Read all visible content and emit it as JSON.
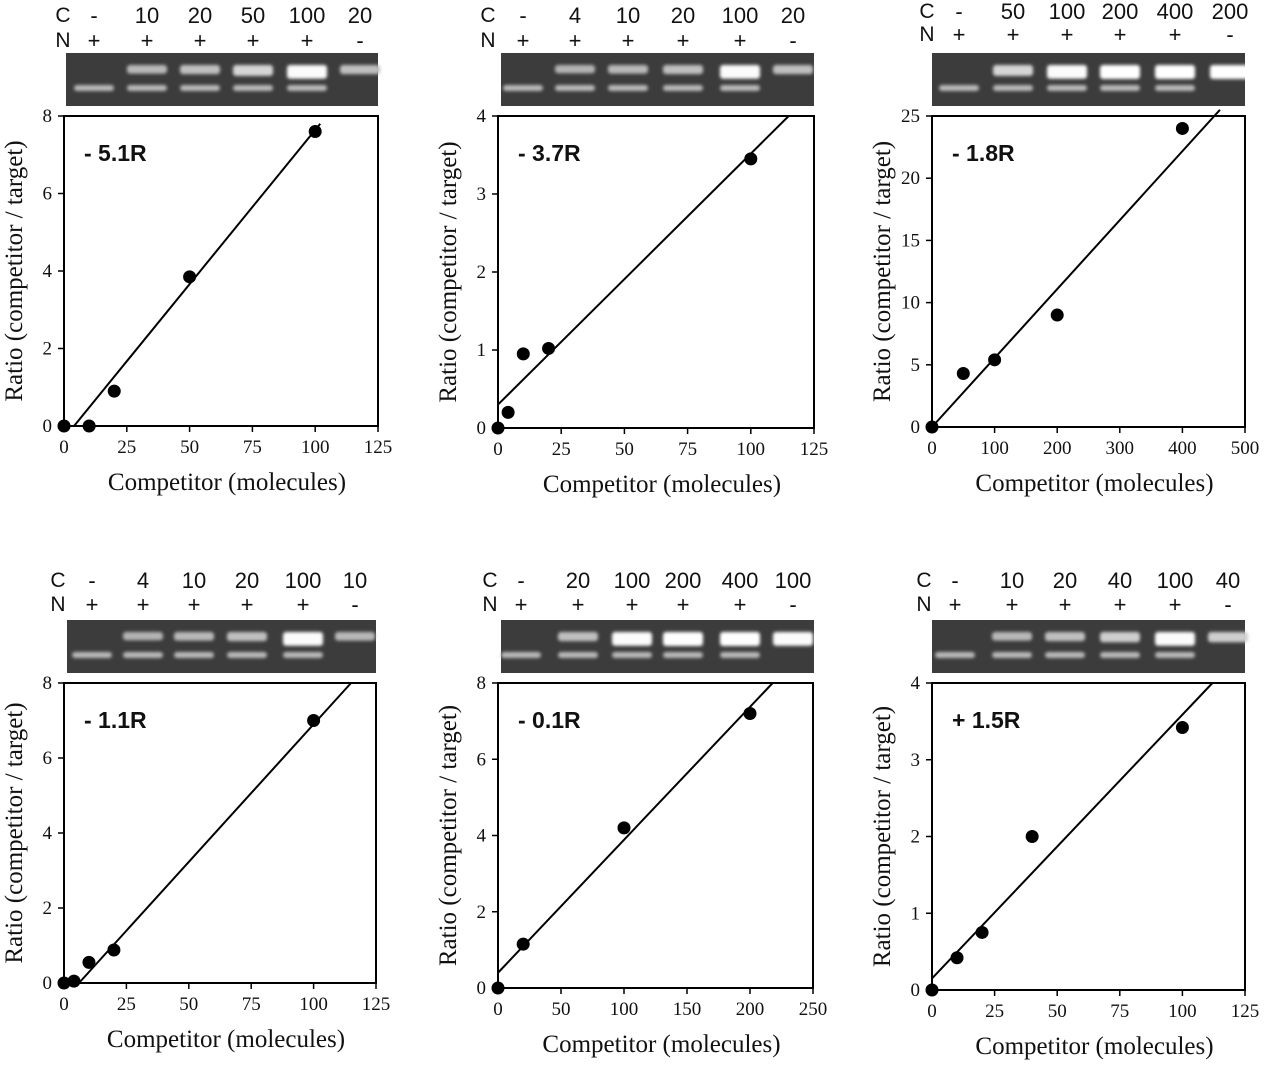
{
  "row_keys": {
    "competitor": "C",
    "target": "N"
  },
  "chart_data": [
    {
      "type": "scatter",
      "annotation": "- 5.1R",
      "gel_lanes": {
        "c": [
          "-",
          "10",
          "20",
          "50",
          "100",
          "20"
        ],
        "n": [
          "+",
          "+",
          "+",
          "+",
          "+",
          "-"
        ]
      },
      "xlabel": "Competitor (molecules)",
      "ylabel": "Ratio (competitor / target)",
      "xlim": [
        0,
        125
      ],
      "ylim": [
        0,
        8
      ],
      "xticks": [
        0,
        25,
        50,
        75,
        100,
        125
      ],
      "yticks": [
        0,
        2,
        4,
        6,
        8
      ],
      "points": [
        [
          0,
          0
        ],
        [
          10,
          0
        ],
        [
          20,
          0.9
        ],
        [
          50,
          3.85
        ],
        [
          100,
          7.6
        ]
      ],
      "fit_line": [
        [
          4,
          0
        ],
        [
          102,
          7.8
        ]
      ]
    },
    {
      "type": "scatter",
      "annotation": "- 3.7R",
      "gel_lanes": {
        "c": [
          "-",
          "4",
          "10",
          "20",
          "100",
          "20"
        ],
        "n": [
          "+",
          "+",
          "+",
          "+",
          "+",
          "-"
        ]
      },
      "xlabel": "Competitor (molecules)",
      "ylabel": "Ratio (competitor / target)",
      "xlim": [
        0,
        125
      ],
      "ylim": [
        0,
        4
      ],
      "xticks": [
        0,
        25,
        50,
        75,
        100,
        125
      ],
      "yticks": [
        0,
        1,
        2,
        3,
        4
      ],
      "points": [
        [
          0,
          0
        ],
        [
          4,
          0.2
        ],
        [
          10,
          0.95
        ],
        [
          20,
          1.02
        ],
        [
          100,
          3.45
        ]
      ],
      "fit_line": [
        [
          0,
          0.3
        ],
        [
          115,
          4
        ]
      ]
    },
    {
      "type": "scatter",
      "annotation": "- 1.8R",
      "gel_lanes": {
        "c": [
          "-",
          "50",
          "100",
          "200",
          "400",
          "200"
        ],
        "n": [
          "+",
          "+",
          "+",
          "+",
          "+",
          "-"
        ]
      },
      "xlabel": "Competitor (molecules)",
      "ylabel": "Ratio (competitor / target)",
      "xlim": [
        0,
        500
      ],
      "ylim": [
        0,
        25
      ],
      "xticks": [
        0,
        100,
        200,
        300,
        400,
        500
      ],
      "yticks": [
        0,
        5,
        10,
        15,
        20,
        25
      ],
      "points": [
        [
          0,
          0
        ],
        [
          50,
          4.3
        ],
        [
          100,
          5.4
        ],
        [
          200,
          9
        ],
        [
          400,
          24
        ]
      ],
      "fit_line": [
        [
          0,
          0
        ],
        [
          460,
          25.5
        ]
      ]
    },
    {
      "type": "scatter",
      "annotation": "- 1.1R",
      "gel_lanes": {
        "c": [
          "-",
          "4",
          "10",
          "20",
          "100",
          "10"
        ],
        "n": [
          "+",
          "+",
          "+",
          "+",
          "+",
          "-"
        ]
      },
      "xlabel": "Competitor (molecules)",
      "ylabel": "Ratio (competitor / target)",
      "xlim": [
        0,
        125
      ],
      "ylim": [
        0,
        8
      ],
      "xticks": [
        0,
        25,
        50,
        75,
        100,
        125
      ],
      "yticks": [
        0,
        2,
        4,
        6,
        8
      ],
      "points": [
        [
          0,
          0
        ],
        [
          4,
          0.05
        ],
        [
          10,
          0.55
        ],
        [
          20,
          0.88
        ],
        [
          100,
          7
        ]
      ],
      "fit_line": [
        [
          6,
          0
        ],
        [
          115,
          8
        ]
      ]
    },
    {
      "type": "scatter",
      "annotation": "- 0.1R",
      "gel_lanes": {
        "c": [
          "-",
          "20",
          "100",
          "200",
          "400",
          "100"
        ],
        "n": [
          "+",
          "+",
          "+",
          "+",
          "+",
          "-"
        ]
      },
      "xlabel": "Competitor (molecules)",
      "ylabel": "Ratio (competitor / target)",
      "xlim": [
        0,
        250
      ],
      "ylim": [
        0,
        8
      ],
      "xticks": [
        0,
        50,
        100,
        150,
        200,
        250
      ],
      "yticks": [
        0,
        2,
        4,
        6,
        8
      ],
      "points": [
        [
          0,
          0
        ],
        [
          20,
          1.15
        ],
        [
          100,
          4.2
        ],
        [
          200,
          7.2
        ]
      ],
      "fit_line": [
        [
          0,
          0.4
        ],
        [
          218,
          8
        ]
      ]
    },
    {
      "type": "scatter",
      "annotation": "+ 1.5R",
      "gel_lanes": {
        "c": [
          "-",
          "10",
          "20",
          "40",
          "100",
          "40"
        ],
        "n": [
          "+",
          "+",
          "+",
          "+",
          "+",
          "-"
        ]
      },
      "xlabel": "Competitor (molecules)",
      "ylabel": "Ratio (competitor / target)",
      "xlim": [
        0,
        125
      ],
      "ylim": [
        0,
        4
      ],
      "xticks": [
        0,
        25,
        50,
        75,
        100,
        125
      ],
      "yticks": [
        0,
        1,
        2,
        3,
        4
      ],
      "points": [
        [
          0,
          0
        ],
        [
          10,
          0.42
        ],
        [
          20,
          0.75
        ],
        [
          40,
          2
        ],
        [
          100,
          3.42
        ]
      ],
      "fit_line": [
        [
          0,
          0.15
        ],
        [
          112,
          4
        ]
      ]
    }
  ]
}
